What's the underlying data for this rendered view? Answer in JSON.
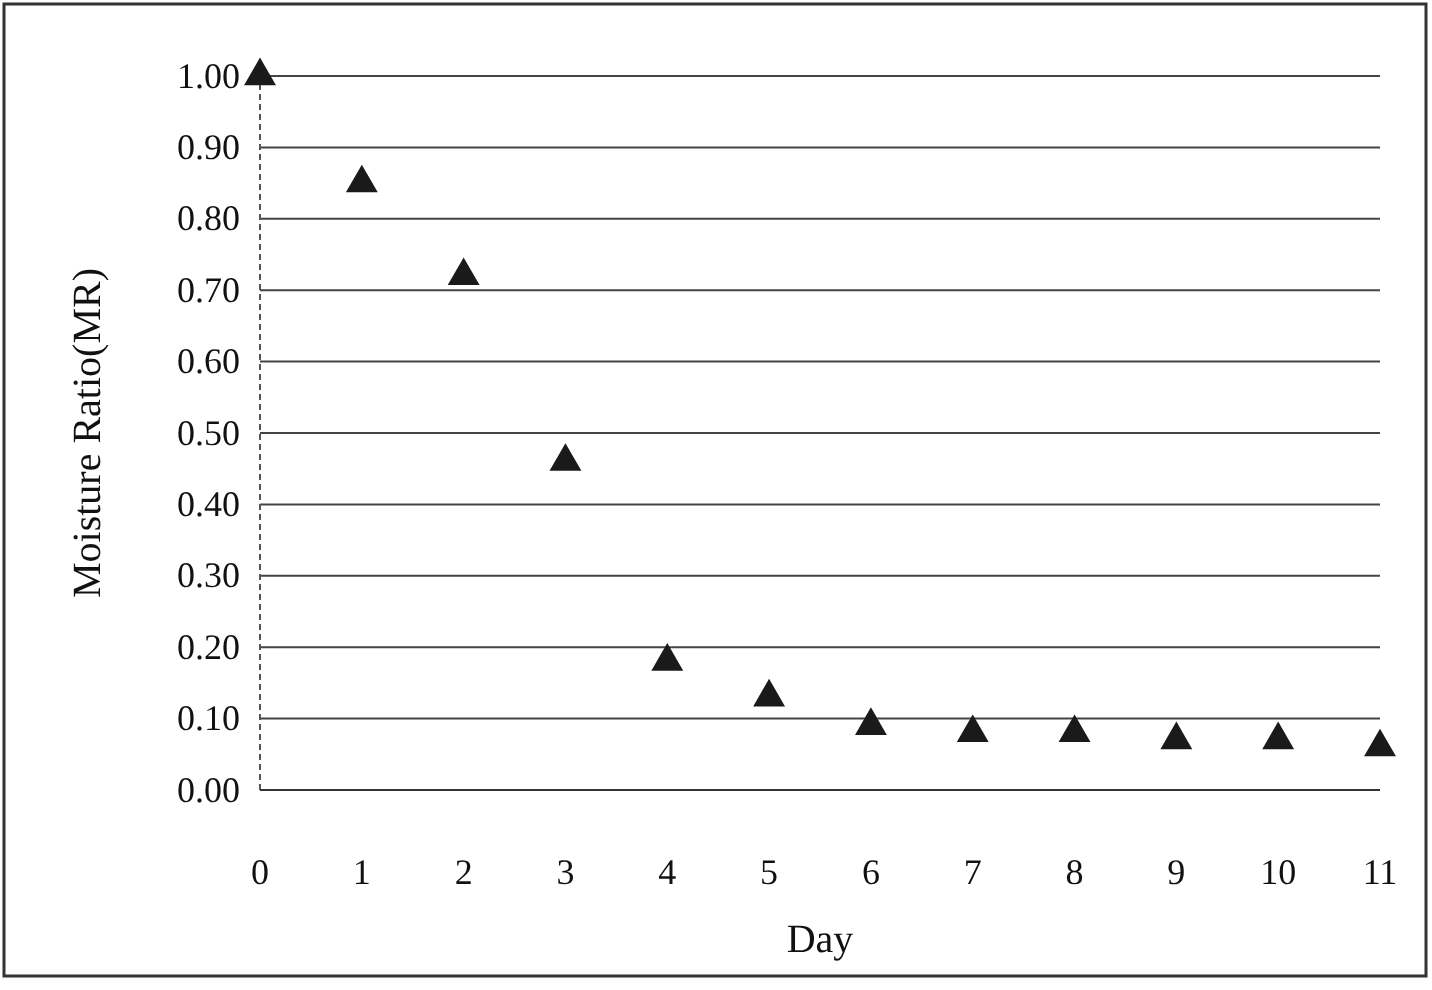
{
  "chart_data": {
    "type": "scatter",
    "xlabel": "Day",
    "ylabel": "Moisture Ratio(MR)",
    "x": [
      0,
      1,
      2,
      3,
      4,
      5,
      6,
      7,
      8,
      9,
      10,
      11
    ],
    "series": [
      {
        "color": "#1a1a1a",
        "values": [
          1.0,
          0.85,
          0.72,
          0.46,
          0.18,
          0.13,
          0.09,
          0.08,
          0.08,
          0.07,
          0.07,
          0.06
        ]
      }
    ],
    "xlim": [
      0,
      11
    ],
    "xticks": [
      0,
      1,
      2,
      3,
      4,
      5,
      6,
      7,
      8,
      9,
      10,
      11
    ],
    "ylim": [
      0,
      1
    ],
    "yticks": [
      {
        "value": 0,
        "label": "0.00"
      },
      {
        "value": 0.1,
        "label": "0.10"
      },
      {
        "value": 0.2,
        "label": "0.20"
      },
      {
        "value": 0.3,
        "label": "0.30"
      },
      {
        "value": 0.4,
        "label": "0.40"
      },
      {
        "value": 0.5,
        "label": "0.50"
      },
      {
        "value": 0.6,
        "label": "0.60"
      },
      {
        "value": 0.7,
        "label": "0.70"
      },
      {
        "value": 0.8,
        "label": "0.80"
      },
      {
        "value": 0.9,
        "label": "0.90"
      },
      {
        "value": 1,
        "label": "1.00"
      }
    ],
    "grid": "y",
    "marker": "triangle"
  }
}
